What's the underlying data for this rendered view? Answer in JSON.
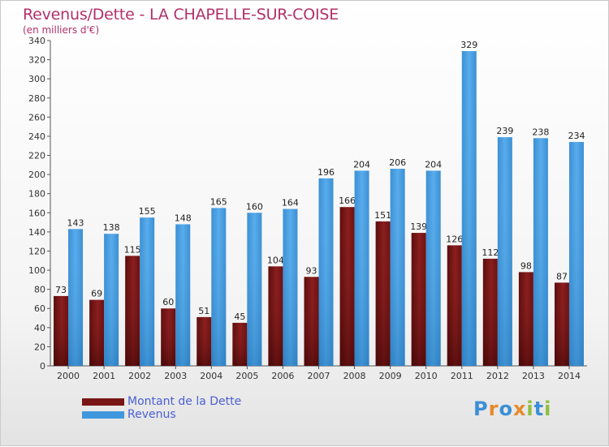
{
  "chart_data": {
    "type": "bar",
    "title": "Revenus/Dette - LA CHAPELLE-SUR-COISE",
    "subtitle": "(en milliers d'€)",
    "categories": [
      "2000",
      "2001",
      "2002",
      "2003",
      "2004",
      "2005",
      "2006",
      "2007",
      "2008",
      "2009",
      "2010",
      "2011",
      "2012",
      "2013",
      "2014"
    ],
    "series": [
      {
        "name": "Montant de la Dette",
        "color": "#7a1515",
        "values": [
          73,
          69,
          115,
          60,
          51,
          45,
          104,
          93,
          166,
          151,
          139,
          126,
          112,
          98,
          87
        ]
      },
      {
        "name": "Revenus",
        "color": "#3f98dd",
        "values": [
          143,
          138,
          155,
          148,
          165,
          160,
          164,
          196,
          204,
          206,
          204,
          329,
          239,
          238,
          234
        ]
      }
    ],
    "ylim": [
      0,
      340
    ],
    "ytick_step": 20,
    "grid": false,
    "legend_position": "bottom-left"
  },
  "logo": {
    "text": "Proxiti",
    "chars": [
      "P",
      "r",
      "o",
      "x",
      "i",
      "t",
      "i"
    ]
  }
}
